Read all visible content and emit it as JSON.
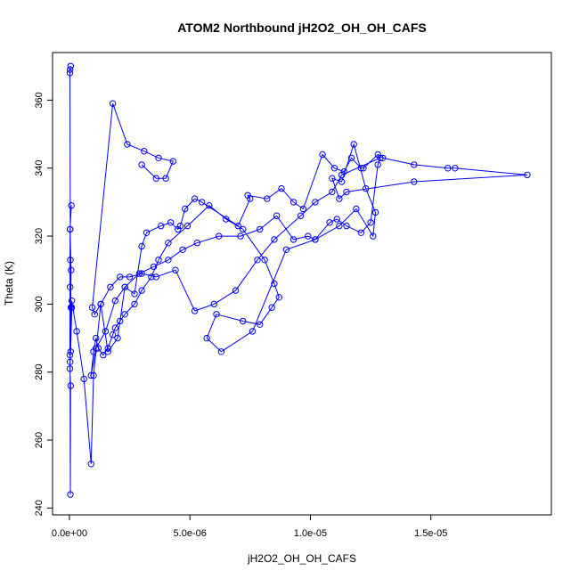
{
  "chart_data": {
    "type": "line",
    "title": "ATOM2 Northbound jH2O2_OH_OH_CAFS",
    "xlabel": "jH2O2_OH_OH_CAFS",
    "ylabel": "Theta (K)",
    "xlim": [
      -7e-07,
      2e-05
    ],
    "ylim": [
      238,
      374
    ],
    "x_ticks": [
      0,
      5e-06,
      1e-05,
      1.5e-05
    ],
    "x_tick_labels": [
      "0.0e+00",
      "5.0e-06",
      "1.0e-05",
      "1.5e-05"
    ],
    "y_ticks": [
      240,
      260,
      280,
      300,
      320,
      340,
      360
    ],
    "y_tick_labels": [
      "240",
      "260",
      "280",
      "300",
      "320",
      "340",
      "360"
    ],
    "grid": false,
    "marker": "open-circle",
    "colors": {
      "series": "#0000ff",
      "axis": "#000000"
    },
    "series": [
      {
        "x": [
          5e-08,
          3e-08,
          2e-08,
          4e-08,
          3e-08,
          6e-08,
          3e-08,
          4e-08,
          5e-08,
          2e-08,
          7e-08,
          3e-08,
          8e-08,
          3e-08,
          2e-08,
          5e-08,
          1e-07,
          1e-07,
          3e-07,
          6e-07,
          9e-07,
          1e-06,
          1.3e-06,
          1.6e-06,
          2e-06,
          2.3e-06,
          2.7e-06,
          3e-06,
          3.2e-06,
          3.8e-06,
          4.2e-06,
          4.5e-06,
          4.6e-06,
          4.8e-06,
          5.2e-06,
          5.5e-06,
          7e-06,
          7.5e-06,
          7.4e-06,
          8.2e-06,
          8.8e-06,
          9.3e-06,
          9.7e-06,
          1.05e-05,
          1.1e-05,
          1.14e-05,
          1.17e-05,
          1.21e-05,
          1.22e-05,
          1.28e-05,
          1.3e-05,
          1.43e-05,
          1.57e-05,
          1.6e-05,
          1.9e-05,
          1.43e-05,
          1.15e-05,
          1.12e-05,
          1.09e-05,
          1.13e-05,
          1.18e-05,
          1.23e-05,
          1.27e-05,
          1.26e-05,
          1.19e-05,
          1.12e-05,
          1.02e-05,
          9e-06,
          7.6e-06,
          6.3e-06,
          5.7e-06,
          6.1e-06,
          7.2e-06,
          7.9e-06,
          8.4e-06,
          8.7e-06,
          8.5e-06,
          8.1e-06,
          7.2e-06,
          6.5e-06,
          5.8e-06,
          4.9e-06,
          4.1e-06,
          3.7e-06,
          3.4e-06,
          3e-06,
          2.7e-06,
          2.3e-06,
          2.1e-06,
          1.9e-06,
          1.8e-06,
          1.6e-06,
          1.4e-06,
          1.2e-06,
          1.1e-06,
          1e-06,
          9e-07,
          1.1e-06,
          1.5e-06,
          1.9e-06,
          2.3e-06,
          2.9e-06,
          3.5e-06,
          4.1e-06,
          4.7e-06,
          5.3e-06,
          6.2e-06,
          7.1e-06,
          7.9e-06,
          8.6e-06,
          9.3e-06,
          9.9e-06,
          1.02e-05,
          1.08e-05,
          1.11e-05,
          1.15e-05,
          1.21e-05,
          1.25e-05,
          1.28e-05,
          1.29e-05,
          1.13e-05,
          1.09e-05,
          1.02e-05,
          9.6e-06,
          8.5e-06,
          7.8e-06,
          6.9e-06,
          6e-06,
          5.2e-06,
          4.4e-06,
          3.6e-06,
          3e-06,
          2.5e-06,
          2.1e-06,
          1.7e-06,
          1.3e-06,
          1.05e-06,
          9.5e-07,
          1.8e-06,
          2.4e-06,
          3.1e-06,
          3.7e-06,
          4.3e-06,
          4e-06,
          3.6e-06,
          3e-06
        ],
        "y": [
          370,
          369,
          368,
          313,
          305,
          299,
          283,
          244,
          276,
          281,
          310,
          322,
          329,
          322,
          285,
          286,
          299,
          301,
          292,
          278,
          253,
          279,
          300,
          286,
          290,
          305,
          303,
          317,
          321,
          323,
          324,
          322,
          323,
          328,
          331,
          330,
          323,
          331,
          332,
          331,
          334,
          330,
          328,
          344,
          340,
          339,
          343,
          340,
          340,
          344,
          343,
          341,
          340,
          340,
          338,
          336,
          333,
          331,
          337,
          336,
          347,
          334,
          327,
          320,
          328,
          323,
          319,
          316,
          292,
          286,
          290,
          297,
          295,
          294,
          299,
          302,
          306,
          313,
          322,
          325,
          329,
          323,
          318,
          313,
          308,
          304,
          300,
          297,
          295,
          293,
          291,
          287,
          285,
          287,
          290,
          286,
          279,
          287,
          292,
          301,
          305,
          309,
          311,
          313,
          316,
          318,
          320,
          320,
          322,
          326,
          319,
          320,
          319,
          324,
          325,
          323,
          321,
          324,
          341,
          343,
          338,
          333,
          330,
          326,
          319,
          313,
          304,
          300,
          298,
          310,
          308,
          309,
          308,
          308,
          305,
          300,
          297,
          299,
          359,
          347,
          345,
          343,
          342,
          337,
          337,
          341
        ]
      }
    ]
  }
}
